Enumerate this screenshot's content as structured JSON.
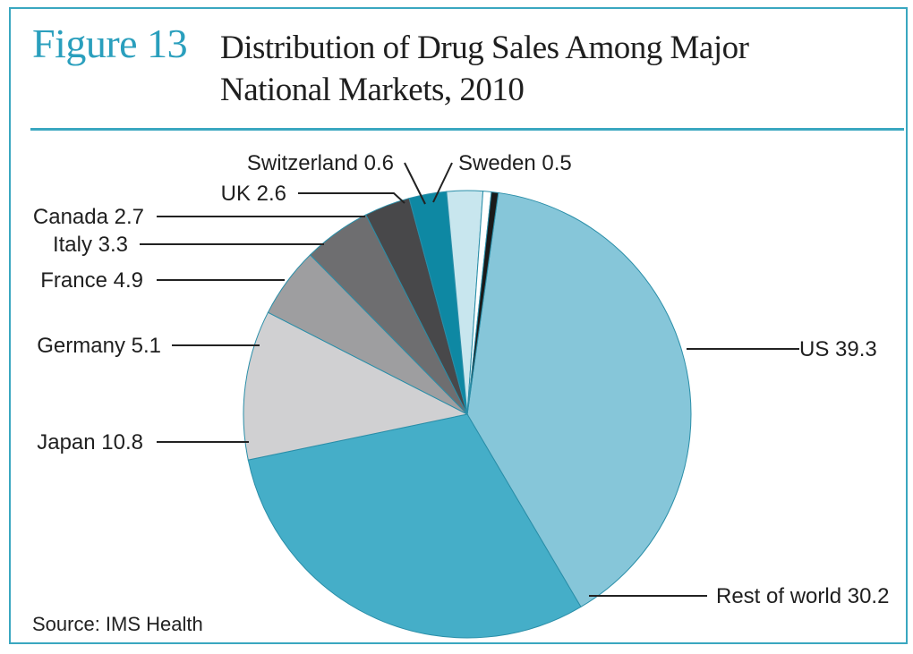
{
  "figure": {
    "number": "Figure 13",
    "title_line1": "Distribution of Drug Sales Among Major",
    "title_line2": "National Markets, 2010",
    "source": "Source: IMS Health"
  },
  "chart_data": {
    "type": "pie",
    "unit": "%",
    "slices": [
      {
        "name": "US",
        "label": "US 39.3",
        "value": 39.3,
        "color": "#86c6d9"
      },
      {
        "name": "Rest of world",
        "label": "Rest of world 30.2",
        "value": 30.2,
        "color": "#45aec8"
      },
      {
        "name": "Japan",
        "label": "Japan 10.8",
        "value": 10.8,
        "color": "#d0d0d2"
      },
      {
        "name": "Germany",
        "label": "Germany 5.1",
        "value": 5.1,
        "color": "#9e9ea0"
      },
      {
        "name": "France",
        "label": "France 4.9",
        "value": 4.9,
        "color": "#6e6e70"
      },
      {
        "name": "Italy",
        "label": "Italy 3.3",
        "value": 3.3,
        "color": "#48484a"
      },
      {
        "name": "Canada",
        "label": "Canada 2.7",
        "value": 2.7,
        "color": "#0e88a3"
      },
      {
        "name": "UK",
        "label": "UK 2.6",
        "value": 2.6,
        "color": "#c8e6ee"
      },
      {
        "name": "Switzerland",
        "label": "Switzerland 0.6",
        "value": 0.6,
        "color": "#ffffff"
      },
      {
        "name": "Sweden",
        "label": "Sweden 0.5",
        "value": 0.5,
        "color": "#1a1a1a"
      }
    ]
  }
}
